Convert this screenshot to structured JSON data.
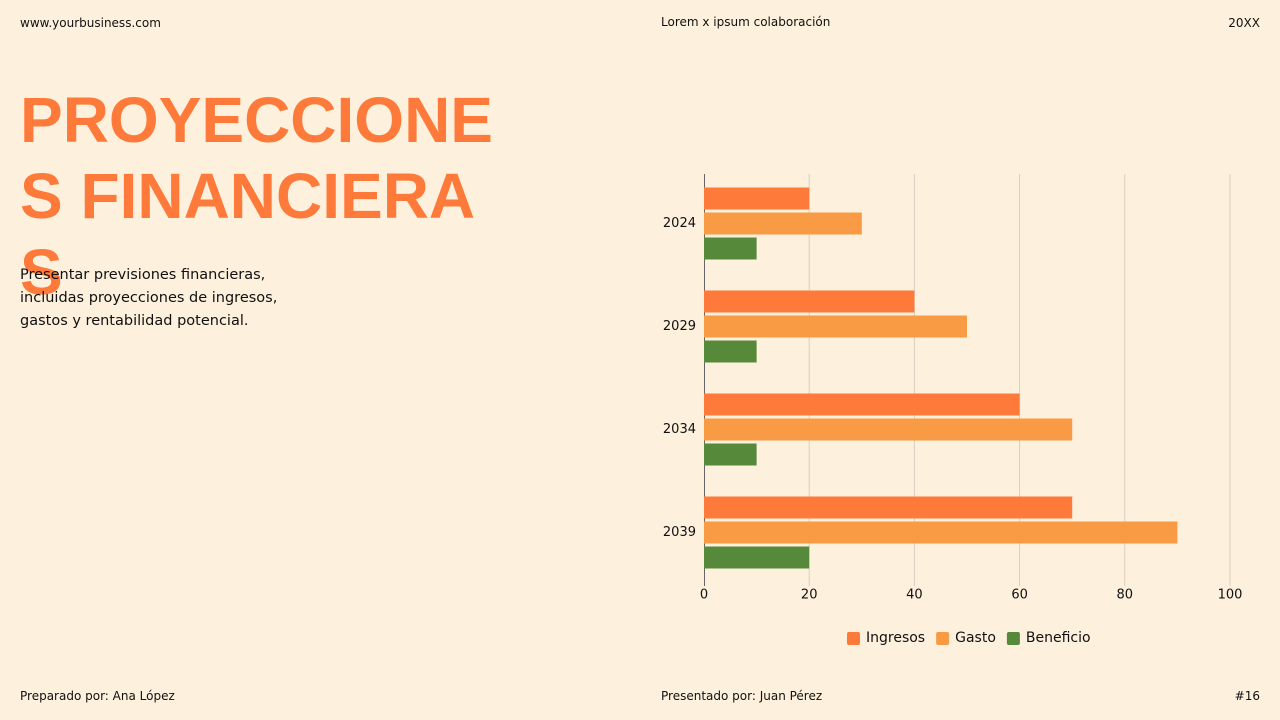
{
  "header": {
    "website": "www.yourbusiness.com",
    "center": "Lorem x ipsum colaboración",
    "year": "20XX"
  },
  "title": "PROYECCIONES FINANCIERAS",
  "description": "Presentar previsiones financieras, incluidas proyecciones de ingresos, gastos y rentabilidad potencial.",
  "footer": {
    "prepared": "Preparado por: Ana López",
    "presented": "Presentado por: Juan Pérez",
    "page": "#16"
  },
  "chart_data": {
    "type": "hbar",
    "categories": [
      "2024",
      "2029",
      "2034",
      "2039"
    ],
    "series": [
      {
        "name": "Ingresos",
        "color": "#fe7a3a",
        "values": [
          20,
          40,
          60,
          70
        ]
      },
      {
        "name": "Gasto",
        "color": "#f99a45",
        "values": [
          30,
          50,
          70,
          90
        ]
      },
      {
        "name": "Beneficio",
        "color": "#568a3a",
        "values": [
          10,
          10,
          10,
          20
        ]
      }
    ],
    "xlim": [
      0,
      100
    ],
    "xticks": [
      0,
      20,
      40,
      60,
      80,
      100
    ],
    "grid": true,
    "legend": "bottom"
  }
}
